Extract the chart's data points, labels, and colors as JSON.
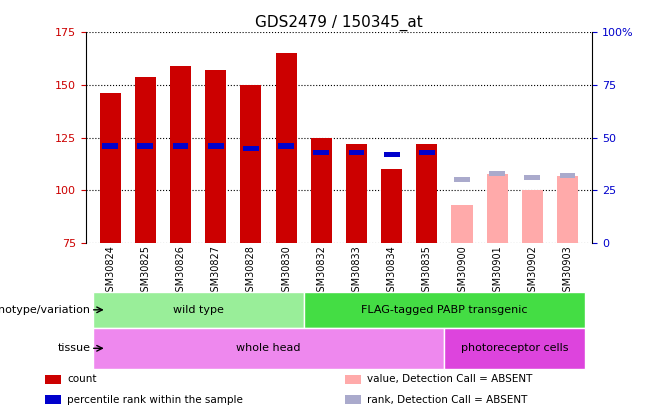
{
  "title": "GDS2479 / 150345_at",
  "samples": [
    "GSM30824",
    "GSM30825",
    "GSM30826",
    "GSM30827",
    "GSM30828",
    "GSM30830",
    "GSM30832",
    "GSM30833",
    "GSM30834",
    "GSM30835",
    "GSM30900",
    "GSM30901",
    "GSM30902",
    "GSM30903"
  ],
  "count_values": [
    146,
    154,
    159,
    157,
    150,
    165,
    125,
    122,
    110,
    122,
    null,
    null,
    null,
    null
  ],
  "count_absent_values": [
    null,
    null,
    null,
    null,
    null,
    null,
    null,
    null,
    null,
    null,
    93,
    108,
    100,
    107
  ],
  "rank_values": [
    46,
    46,
    46,
    46,
    45,
    46,
    43,
    43,
    42,
    43,
    null,
    null,
    null,
    null
  ],
  "rank_absent_values": [
    null,
    null,
    null,
    null,
    null,
    null,
    null,
    null,
    null,
    null,
    30,
    33,
    31,
    32
  ],
  "ylim": [
    75,
    175
  ],
  "yticks": [
    75,
    100,
    125,
    150,
    175
  ],
  "right_ylim": [
    0,
    100
  ],
  "right_yticks": [
    0,
    25,
    50,
    75,
    100
  ],
  "right_yticklabels": [
    "0",
    "25",
    "50",
    "75",
    "100%"
  ],
  "bar_width": 0.6,
  "count_color": "#cc0000",
  "count_absent_color": "#ffaaaa",
  "rank_color": "#0000cc",
  "rank_absent_color": "#aaaacc",
  "genotype_groups": [
    {
      "label": "wild type",
      "start": 0,
      "end": 5,
      "color": "#99ee99"
    },
    {
      "label": "FLAG-tagged PABP transgenic",
      "start": 6,
      "end": 13,
      "color": "#44dd44"
    }
  ],
  "tissue_groups": [
    {
      "label": "whole head",
      "start": 0,
      "end": 9,
      "color": "#ee88ee"
    },
    {
      "label": "photoreceptor cells",
      "start": 10,
      "end": 13,
      "color": "#dd44dd"
    }
  ],
  "genotype_label": "genotype/variation",
  "tissue_label": "tissue",
  "legend_items": [
    {
      "label": "count",
      "color": "#cc0000"
    },
    {
      "label": "percentile rank within the sample",
      "color": "#0000cc"
    },
    {
      "label": "value, Detection Call = ABSENT",
      "color": "#ffaaaa"
    },
    {
      "label": "rank, Detection Call = ABSENT",
      "color": "#aaaacc"
    }
  ],
  "tick_label_bg": "#dddddd",
  "title_fontsize": 11,
  "tick_fontsize": 7,
  "annot_fontsize": 8
}
